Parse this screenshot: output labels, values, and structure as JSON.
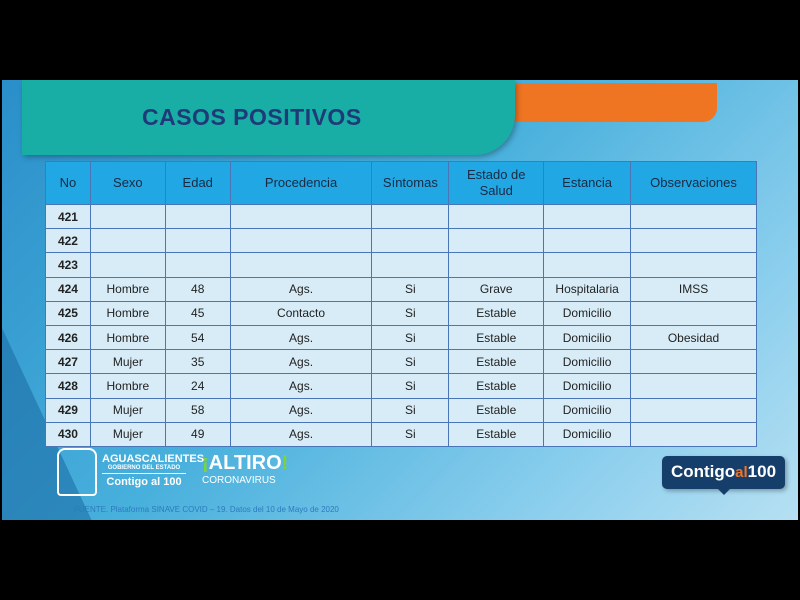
{
  "title": "CASOS POSITIVOS",
  "table": {
    "headers": [
      "No",
      "Sexo",
      "Edad",
      "Procedencia",
      "Síntomas",
      "Estado de Salud",
      "Estancia",
      "Observaciones"
    ],
    "rows": [
      [
        "421",
        "",
        "",
        "",
        "",
        "",
        "",
        ""
      ],
      [
        "422",
        "",
        "",
        "",
        "",
        "",
        "",
        ""
      ],
      [
        "423",
        "",
        "",
        "",
        "",
        "",
        "",
        ""
      ],
      [
        "424",
        "Hombre",
        "48",
        "Ags.",
        "Si",
        "Grave",
        "Hospitalaria",
        "IMSS"
      ],
      [
        "425",
        "Hombre",
        "45",
        "Contacto",
        "Si",
        "Estable",
        "Domicilio",
        ""
      ],
      [
        "426",
        "Hombre",
        "54",
        "Ags.",
        "Si",
        "Estable",
        "Domicilio",
        "Obesidad"
      ],
      [
        "427",
        "Mujer",
        "35",
        "Ags.",
        "Si",
        "Estable",
        "Domicilio",
        ""
      ],
      [
        "428",
        "Hombre",
        "24",
        "Ags.",
        "Si",
        "Estable",
        "Domicilio",
        ""
      ],
      [
        "429",
        "Mujer",
        "58",
        "Ags.",
        "Si",
        "Estable",
        "Domicilio",
        ""
      ],
      [
        "430",
        "Mujer",
        "49",
        "Ags.",
        "Si",
        "Estable",
        "Domicilio",
        ""
      ]
    ]
  },
  "footer": {
    "logo_ags": {
      "name": "AGUASCALIENTES",
      "sub": "GOBIERNO DEL ESTADO",
      "slogan": "Contigo al 100"
    },
    "logo_altiro": {
      "top": "ALTIRO",
      "bottom": "CORONAVIRUS"
    },
    "badge": {
      "a": "Contigo",
      "b": "al",
      "c": "100"
    },
    "source": "FUENTE. Plataforma SINAVE COVID – 19. Datos del 10 de Mayo de 2020"
  },
  "colors": {
    "teal": "#18aea6",
    "orange": "#ef7523",
    "title": "#1f3a78",
    "header": "#21a7e3"
  }
}
